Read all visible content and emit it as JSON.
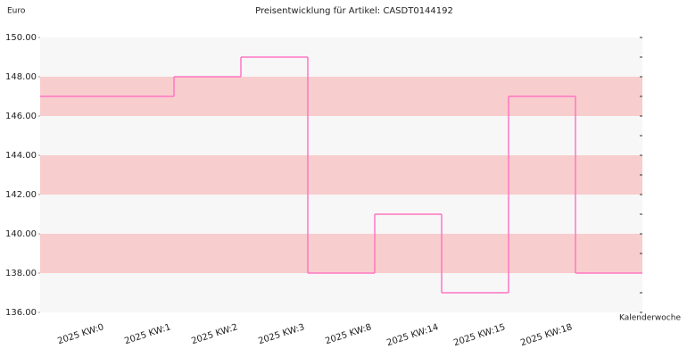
{
  "chart_data": {
    "type": "step",
    "title": "Preisentwicklung für Artikel: CASDT0144192",
    "y_label": "Euro",
    "x_label": "Kalenderwoche",
    "categories": [
      "2025 KW:0",
      "2025 KW:1",
      "2025 KW:2",
      "2025 KW:3",
      "2025 KW:8",
      "2025 KW:14",
      "2025 KW:15",
      "2025 KW:18"
    ],
    "values": [
      147,
      148,
      149,
      138,
      141,
      137,
      147,
      138
    ],
    "color": "#ff77c4",
    "band_colors": [
      "#f7f7f7",
      "#f8cdcd"
    ],
    "ylim": [
      136,
      150
    ],
    "yticks": [
      {
        "value": 136,
        "label": "136.00"
      },
      {
        "value": 138,
        "label": "138.00"
      },
      {
        "value": 140,
        "label": "140.00"
      },
      {
        "value": 142,
        "label": "142.00"
      },
      {
        "value": 144,
        "label": "144.00"
      },
      {
        "value": 146,
        "label": "146.00"
      },
      {
        "value": 148,
        "label": "148.00"
      },
      {
        "value": 150,
        "label": "150.00"
      }
    ]
  }
}
